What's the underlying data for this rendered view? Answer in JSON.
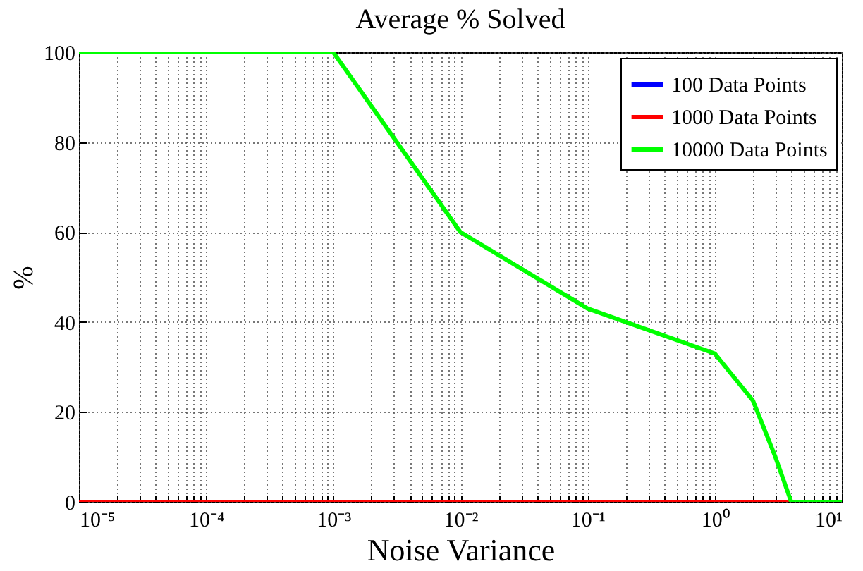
{
  "chart_data": {
    "type": "line",
    "title": "Average % Solved",
    "xlabel": "Noise Variance",
    "ylabel": "%",
    "log": "x",
    "x": [
      1e-05,
      0.0001,
      0.001,
      0.01,
      0.1,
      1,
      2,
      3,
      4,
      5,
      6,
      7,
      8,
      9,
      10
    ],
    "series": [
      {
        "name": "100 Data Points",
        "color": "#0000ff",
        "values": [
          null,
          null,
          null,
          null,
          null,
          null,
          null,
          null,
          null,
          null,
          null,
          null,
          null,
          null,
          null
        ]
      },
      {
        "name": "1000 Data Points",
        "color": "#ff0000",
        "values": [
          0,
          0,
          0,
          0,
          0,
          0,
          0,
          0,
          0,
          0,
          null,
          null,
          null,
          null,
          null
        ]
      },
      {
        "name": "10000 Data Points",
        "color": "#00ff00",
        "values": [
          100,
          100,
          100,
          60,
          43,
          33,
          22.5,
          10,
          0,
          0,
          0,
          0,
          0,
          0,
          0
        ]
      }
    ],
    "xlim": [
      1e-05,
      10
    ],
    "xticks": [
      {
        "value": 1e-05,
        "label": "10⁻⁵"
      },
      {
        "value": 2e-05,
        "label": null
      },
      {
        "value": 3e-05,
        "label": null
      },
      {
        "value": 4e-05,
        "label": null
      },
      {
        "value": 5e-05,
        "label": null
      },
      {
        "value": 6e-05,
        "label": null
      },
      {
        "value": 7e-05,
        "label": null
      },
      {
        "value": 8e-05,
        "label": null
      },
      {
        "value": 9e-05,
        "label": null
      },
      {
        "value": 0.0001,
        "label": "10⁻⁴"
      },
      {
        "value": 0.0002,
        "label": null
      },
      {
        "value": 0.0003,
        "label": null
      },
      {
        "value": 0.0004,
        "label": null
      },
      {
        "value": 0.0005,
        "label": null
      },
      {
        "value": 0.0006,
        "label": null
      },
      {
        "value": 0.0007,
        "label": null
      },
      {
        "value": 0.0008,
        "label": null
      },
      {
        "value": 0.0009,
        "label": null
      },
      {
        "value": 0.001,
        "label": "10⁻³"
      },
      {
        "value": 0.002,
        "label": null
      },
      {
        "value": 0.003,
        "label": null
      },
      {
        "value": 0.004,
        "label": null
      },
      {
        "value": 0.005,
        "label": null
      },
      {
        "value": 0.006,
        "label": null
      },
      {
        "value": 0.007,
        "label": null
      },
      {
        "value": 0.008,
        "label": null
      },
      {
        "value": 0.009,
        "label": null
      },
      {
        "value": 0.01,
        "label": "10⁻²"
      },
      {
        "value": 0.02,
        "label": null
      },
      {
        "value": 0.03,
        "label": null
      },
      {
        "value": 0.04,
        "label": null
      },
      {
        "value": 0.05,
        "label": null
      },
      {
        "value": 0.06,
        "label": null
      },
      {
        "value": 0.07,
        "label": null
      },
      {
        "value": 0.08,
        "label": null
      },
      {
        "value": 0.09,
        "label": null
      },
      {
        "value": 0.1,
        "label": "10⁻¹"
      },
      {
        "value": 0.2,
        "label": null
      },
      {
        "value": 0.3,
        "label": null
      },
      {
        "value": 0.4,
        "label": null
      },
      {
        "value": 0.5,
        "label": null
      },
      {
        "value": 0.6,
        "label": null
      },
      {
        "value": 0.7,
        "label": null
      },
      {
        "value": 0.8,
        "label": null
      },
      {
        "value": 0.9,
        "label": null
      },
      {
        "value": 1,
        "label": "10⁰"
      },
      {
        "value": 2,
        "label": null
      },
      {
        "value": 3,
        "label": null
      },
      {
        "value": 4,
        "label": null
      },
      {
        "value": 5,
        "label": null
      },
      {
        "value": 6,
        "label": null
      },
      {
        "value": 7,
        "label": null
      },
      {
        "value": 8,
        "label": null
      },
      {
        "value": 9,
        "label": null
      },
      {
        "value": 10,
        "label": "10¹"
      }
    ],
    "ylim": [
      0,
      100
    ],
    "yticks": [
      0,
      20,
      40,
      60,
      80,
      100
    ],
    "grid": true,
    "legend": "top right",
    "marker": "none",
    "line_style": "solid"
  }
}
